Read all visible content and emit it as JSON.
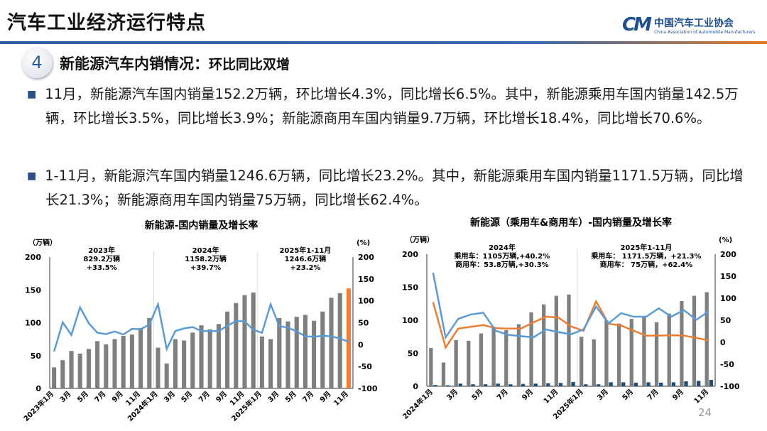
{
  "header": {
    "title": "汽车工业经济运行特点",
    "logo_mark": "CM",
    "logo_cn": "中国汽车工业协会",
    "logo_en": "China Association of Automobile Manufacturers"
  },
  "section": {
    "number": "4",
    "title": "新能源汽车内销情况：",
    "subtitle": "环比同比双增"
  },
  "bullets": [
    "11月，新能源汽车国内销量152.2万辆，环比增长4.3%，同比增长6.5%。其中，新能源乘用车国内销量142.5万辆，环比增长3.5%，同比增长3.9%；新能源商用车国内销量9.7万辆，环比增长18.4%，同比增长70.6%。",
    "1-11月，新能源汽车国内销量1246.6万辆，同比增长23.2%。其中，新能源乘用车国内销量1171.5万辆，同比增长21.3%；新能源商用车国内销量75万辆，同比增长62.4%。"
  ],
  "page_number": "24",
  "colors": {
    "bar": "#7f7f7f",
    "highlight_bar": "#ed7d31",
    "line_blue": "#5b9bd5",
    "line_orange": "#ed7d31",
    "commercial_bar": "#1f4e79"
  },
  "chart_data": [
    {
      "type": "bar+line",
      "title": "新能源-国内销量及增长率",
      "ylabel_left": "（万辆）",
      "ylabel_right": "(%)",
      "ylim_left": [
        0,
        200
      ],
      "ylim_right": [
        -100,
        200
      ],
      "left_ticks": [
        "0",
        "50",
        "100",
        "150",
        "200"
      ],
      "right_ticks": [
        "-100",
        "-50",
        "0",
        "50",
        "100",
        "150",
        "200"
      ],
      "x_tick_labels": [
        "2023年1月",
        "3月",
        "5月",
        "7月",
        "9月",
        "11月",
        "2024年1月",
        "3月",
        "5月",
        "7月",
        "9月",
        "11月",
        "2025年1月",
        "3月",
        "5月",
        "7月",
        "9月",
        "11月"
      ],
      "annotations": [
        [
          "2023年",
          "829.2万辆",
          "+33.5%"
        ],
        [
          "2024年",
          "1158.2万辆",
          "+39.7%"
        ],
        [
          "2025年1-11月",
          "1246.6万辆",
          "+23.2%"
        ]
      ],
      "sales": [
        32,
        43,
        57,
        53,
        60,
        72,
        67,
        75,
        80,
        82,
        92,
        107,
        62,
        38,
        75,
        73,
        85,
        96,
        90,
        98,
        117,
        130,
        142,
        146,
        79,
        75,
        107,
        102,
        109,
        112,
        103,
        117,
        138,
        145,
        152.2
      ],
      "growth": [
        -16,
        51,
        22,
        85,
        49,
        27,
        24,
        30,
        23,
        36,
        35,
        46,
        92,
        -10,
        31,
        37,
        40,
        31,
        31,
        31,
        43,
        54,
        53,
        34,
        27,
        92,
        42,
        39,
        30,
        19,
        18,
        20,
        19,
        14,
        6.5
      ]
    },
    {
      "type": "bar+line",
      "title": "新能源（乘用车&商用车）-国内销量及增长率",
      "ylabel_left": "（万辆）",
      "ylabel_right": "(%)",
      "ylim_left": [
        0,
        200
      ],
      "ylim_right": [
        -100,
        200
      ],
      "left_ticks": [
        "0",
        "50",
        "100",
        "150",
        "200"
      ],
      "right_ticks": [
        "-100",
        "-50",
        "0",
        "50",
        "100",
        "150",
        "200"
      ],
      "x_tick_labels": [
        "2024年1月",
        "3月",
        "5月",
        "7月",
        "9月",
        "11月",
        "2025年1月",
        "3月",
        "5月",
        "7月",
        "9月",
        "11月"
      ],
      "annotations": [
        [
          "2024年",
          "乘用车：1105万辆,+40.2%",
          "商用车：53.8万辆,+30.3%"
        ],
        [
          "2025年1-11月",
          "乘用车： 1171.5万辆，+21.3%",
          "商用车： 75万辆，+62.4%"
        ]
      ],
      "passenger_sales": [
        58,
        36,
        70,
        69,
        80,
        90,
        85,
        94,
        112,
        124,
        137,
        139,
        75,
        71,
        100,
        95,
        102,
        105,
        97,
        110,
        129,
        137,
        142.5
      ],
      "commercial_sales": [
        2,
        1.5,
        4,
        3,
        3,
        4,
        3,
        3.5,
        4,
        4.5,
        5,
        6.5,
        3,
        3,
        6,
        6,
        5.5,
        6,
        5.5,
        6,
        7.5,
        8.2,
        9.7
      ],
      "passenger_growth": [
        91,
        -12,
        31,
        35,
        39,
        32,
        31,
        31,
        45,
        58,
        56,
        36,
        26,
        93,
        42,
        38,
        26,
        15,
        15,
        16,
        15,
        10,
        3.9
      ],
      "commercial_growth": [
        158,
        11,
        53,
        63,
        67,
        26,
        17,
        14,
        11,
        29,
        23,
        18,
        29,
        81,
        43,
        66,
        58,
        58,
        77,
        58,
        73,
        51,
        70.6
      ]
    }
  ]
}
